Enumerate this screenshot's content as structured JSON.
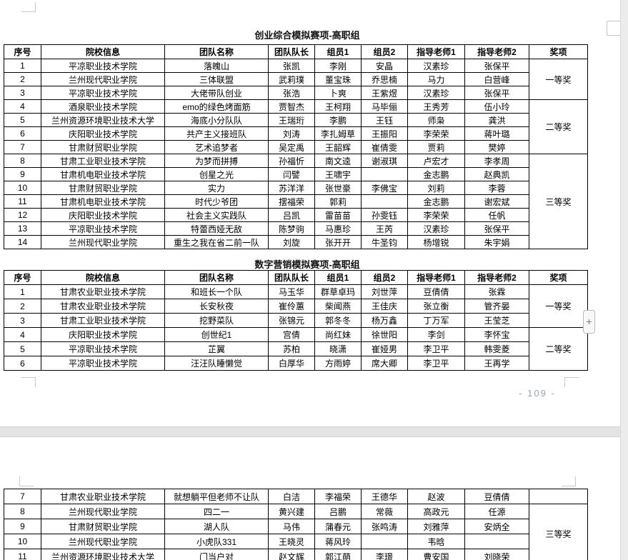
{
  "page": {
    "number_label": "- 109 -"
  },
  "widgets": {
    "plus_label": "+"
  },
  "tables": [
    {
      "title": "创业综合模拟赛项-高职组",
      "headers": [
        "序号",
        "院校信息",
        "团队名称",
        "团队队长",
        "组员1",
        "组员2",
        "指导老师1",
        "指导老师2",
        "奖项"
      ],
      "rows": [
        [
          "1",
          "平凉职业技术学院",
          "落魄山",
          "张凯",
          "李刚",
          "安晶",
          "汉素珍",
          "张保平"
        ],
        [
          "2",
          "兰州现代职业学院",
          "三体联盟",
          "武莉璞",
          "董宝珠",
          "乔思楠",
          "马力",
          "白营峰"
        ],
        [
          "3",
          "平凉职业技术学院",
          "大佬带队创业",
          "张浩",
          "卜爽",
          "王紫煜",
          "汉素珍",
          "张保平"
        ],
        [
          "4",
          "酒泉职业技术学院",
          "emo的绿色烤面筋",
          "贾智杰",
          "王柯翔",
          "马毕俪",
          "王秀芳",
          "伍小玲"
        ],
        [
          "5",
          "兰州资源环境职业技术大学",
          "海底小分队队",
          "王瑞珩",
          "李鹏",
          "王钰",
          "师枭",
          "龚洪"
        ],
        [
          "6",
          "庆阳职业技术学院",
          "共产主义接班队",
          "刘涛",
          "李扎姆草",
          "王振阳",
          "李荣荣",
          "蒋叶璐"
        ],
        [
          "7",
          "甘肃财贸职业学院",
          "艺术追梦者",
          "吴定禹",
          "王韶辉",
          "崔倩雯",
          "贾莉",
          "樊婷"
        ],
        [
          "8",
          "甘肃工业职业技术学院",
          "为梦而拼搏",
          "孙福忻",
          "南文逵",
          "谢淑琪",
          "卢宏才",
          "李孝周"
        ],
        [
          "9",
          "甘肃机电职业技术学院",
          "创星之光",
          "闫譬",
          "王啸宇",
          "",
          "金志鹏",
          "赵典凯"
        ],
        [
          "10",
          "甘肃财贸职业学院",
          "实力",
          "苏洋洋",
          "张世豪",
          "李佛宝",
          "刘莉",
          "李蓉"
        ],
        [
          "11",
          "甘肃机电职业技术学院",
          "时代少爷团",
          "摆福荣",
          "郭莉",
          "",
          "金志鹏",
          "谢宏斌"
        ],
        [
          "12",
          "庆阳职业技术学院",
          "社会主义实践队",
          "吕凯",
          "雷苗苗",
          "孙雯钰",
          "李荣荣",
          "任帆"
        ],
        [
          "13",
          "平凉职业技术学院",
          "特蕾西娅无敌",
          "陈梦驹",
          "马惠珍",
          "王芮",
          "汉素珍",
          "张保平"
        ],
        [
          "14",
          "兰州现代职业学院",
          "重生之我在省二前一队",
          "刘旋",
          "张开开",
          "牛圣钧",
          "杨增锐",
          "朱宇娟"
        ]
      ],
      "awards": [
        {
          "label": "一等奖",
          "start": 0,
          "span": 3
        },
        {
          "label": "二等奖",
          "start": 3,
          "span": 4
        },
        {
          "label": "三等奖",
          "start": 7,
          "span": 7
        }
      ]
    },
    {
      "title": "数字营销模拟赛项-高职组",
      "headers": [
        "序号",
        "院校信息",
        "团队名称",
        "团队队长",
        "组员1",
        "组员2",
        "指导老师1",
        "指导老师2",
        "奖项"
      ],
      "rows": [
        [
          "1",
          "甘肃农业职业技术学院",
          "和班长一个队",
          "马玉华",
          "群草卓玛",
          "刘世萍",
          "豆倩倩",
          "张霖"
        ],
        [
          "2",
          "甘肃农业职业技术学院",
          "长安秋夜",
          "崔伶蕙",
          "柴闻燕",
          "王佳庆",
          "张立衡",
          "管齐晏"
        ],
        [
          "3",
          "甘肃工业职业技术学院",
          "挖野菜队",
          "张锦元",
          "郭冬冬",
          "杨万鑫",
          "丁万军",
          "王莹芝"
        ],
        [
          "4",
          "庆阳职业技术学院",
          "创世纪1",
          "宫倩",
          "尚红妹",
          "徐世阳",
          "李剑",
          "李怀宝"
        ],
        [
          "5",
          "平凉职业技术学院",
          "芷翼",
          "苏柏",
          "晓潇",
          "崔娅男",
          "李卫平",
          "韩雯菱"
        ],
        [
          "6",
          "平凉职业技术学院",
          "汪汪队睡懒觉",
          "白厚华",
          "方雨婷",
          "席大卿",
          "李卫平",
          "王再学"
        ]
      ],
      "awards": [
        {
          "label": "一等奖",
          "start": 0,
          "span": 3
        },
        {
          "label": "二等奖",
          "start": 3,
          "span": 3
        }
      ]
    },
    {
      "title": "",
      "headers": null,
      "rows": [
        [
          "7",
          "甘肃农业职业技术学院",
          "就想躺平但老师不让队",
          "白洁",
          "李福荣",
          "王德华",
          "赵波",
          "豆倩倩"
        ],
        [
          "8",
          "兰州现代职业学院",
          "四二一",
          "黄兴建",
          "吕鹏",
          "常薇",
          "高政元",
          "任源"
        ],
        [
          "9",
          "甘肃财贸职业学院",
          "湖人队",
          "马伟",
          "蒲春元",
          "张鸣涛",
          "刘雅萍",
          "安炳全"
        ],
        [
          "10",
          "兰州现代职业学院",
          "小虎队331",
          "王晓灵",
          "蒋风玲",
          "",
          "韦晗",
          ""
        ],
        [
          "11",
          "兰州资源环境职业技术大学",
          "门当户对",
          "赵文辉",
          "郭江萌",
          "李璟",
          "曹安国",
          "刘晓荣"
        ]
      ],
      "awards": [
        {
          "label": "",
          "start": 0,
          "span": 1
        },
        {
          "label": "三等奖",
          "start": 1,
          "span": 4
        }
      ]
    }
  ]
}
